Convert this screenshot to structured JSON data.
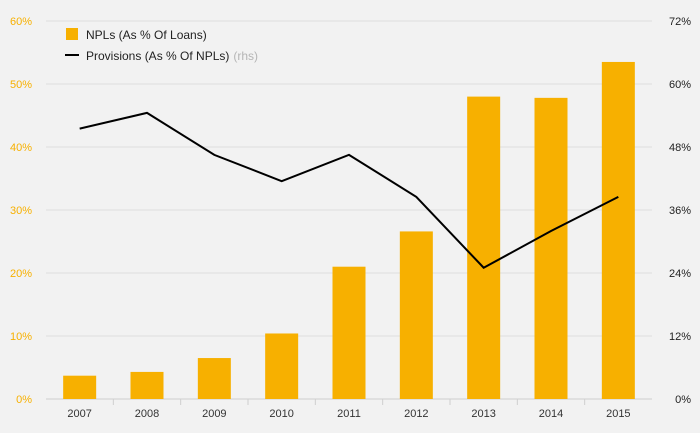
{
  "chart_data": {
    "type": "bar+line",
    "categories": [
      "2007",
      "2008",
      "2009",
      "2010",
      "2011",
      "2012",
      "2013",
      "2014",
      "2015"
    ],
    "series": [
      {
        "name": "NPLs (As % Of Loans)",
        "type": "bar",
        "axis": "left",
        "color": "#f7b000",
        "values": [
          3.7,
          4.3,
          6.5,
          10.4,
          21.0,
          26.6,
          48.0,
          47.8,
          53.5
        ]
      },
      {
        "name": "Provisions (As % Of NPLs)",
        "axis_note": "(rhs)",
        "type": "line",
        "axis": "right",
        "color": "#000000",
        "values": [
          51.5,
          54.5,
          46.5,
          41.5,
          46.5,
          38.5,
          25.0,
          32.0,
          38.5
        ]
      }
    ],
    "y_left": {
      "ticks": [
        "0%",
        "10%",
        "20%",
        "30%",
        "40%",
        "50%",
        "60%"
      ],
      "range": [
        0,
        60
      ],
      "color": "#f7b000"
    },
    "y_right": {
      "ticks": [
        "0%",
        "12%",
        "24%",
        "36%",
        "48%",
        "60%",
        "72%"
      ],
      "range": [
        0,
        72
      ],
      "color": "#222222"
    },
    "grid": true,
    "legend": "top-left",
    "background": "#f2f2f2"
  }
}
